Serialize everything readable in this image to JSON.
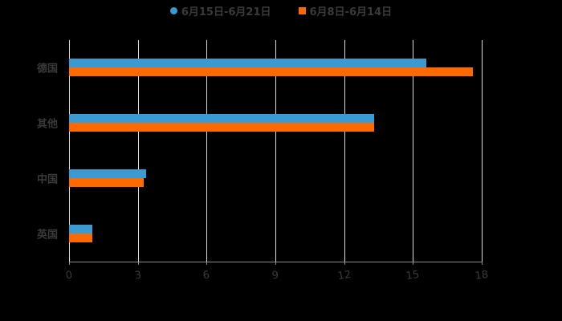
{
  "chart_data": {
    "type": "bar",
    "orientation": "horizontal",
    "title": "",
    "categories": [
      "德国",
      "其他",
      "中国",
      "英国"
    ],
    "series": [
      {
        "name": "6月15日-6月21日",
        "color": "#3a9ad1",
        "values": [
          15.6,
          13.3,
          3.35,
          1.0
        ]
      },
      {
        "name": "6月8日-6月14日",
        "color": "#ff6a00",
        "values": [
          17.6,
          13.3,
          3.25,
          1.0
        ]
      }
    ],
    "xlabel": "",
    "ylabel": "",
    "xlim": [
      0,
      18
    ],
    "xticks": [
      "0",
      "3",
      "6",
      "9",
      "12",
      "15",
      "18"
    ],
    "grid": true,
    "legend_position": "top"
  },
  "legend": {
    "item0": "6月15日-6月21日",
    "item1": "6月8日-6月14日"
  },
  "colors": {
    "series0": "#3a9ad1",
    "series1": "#ff6a00",
    "background": "#000000"
  }
}
